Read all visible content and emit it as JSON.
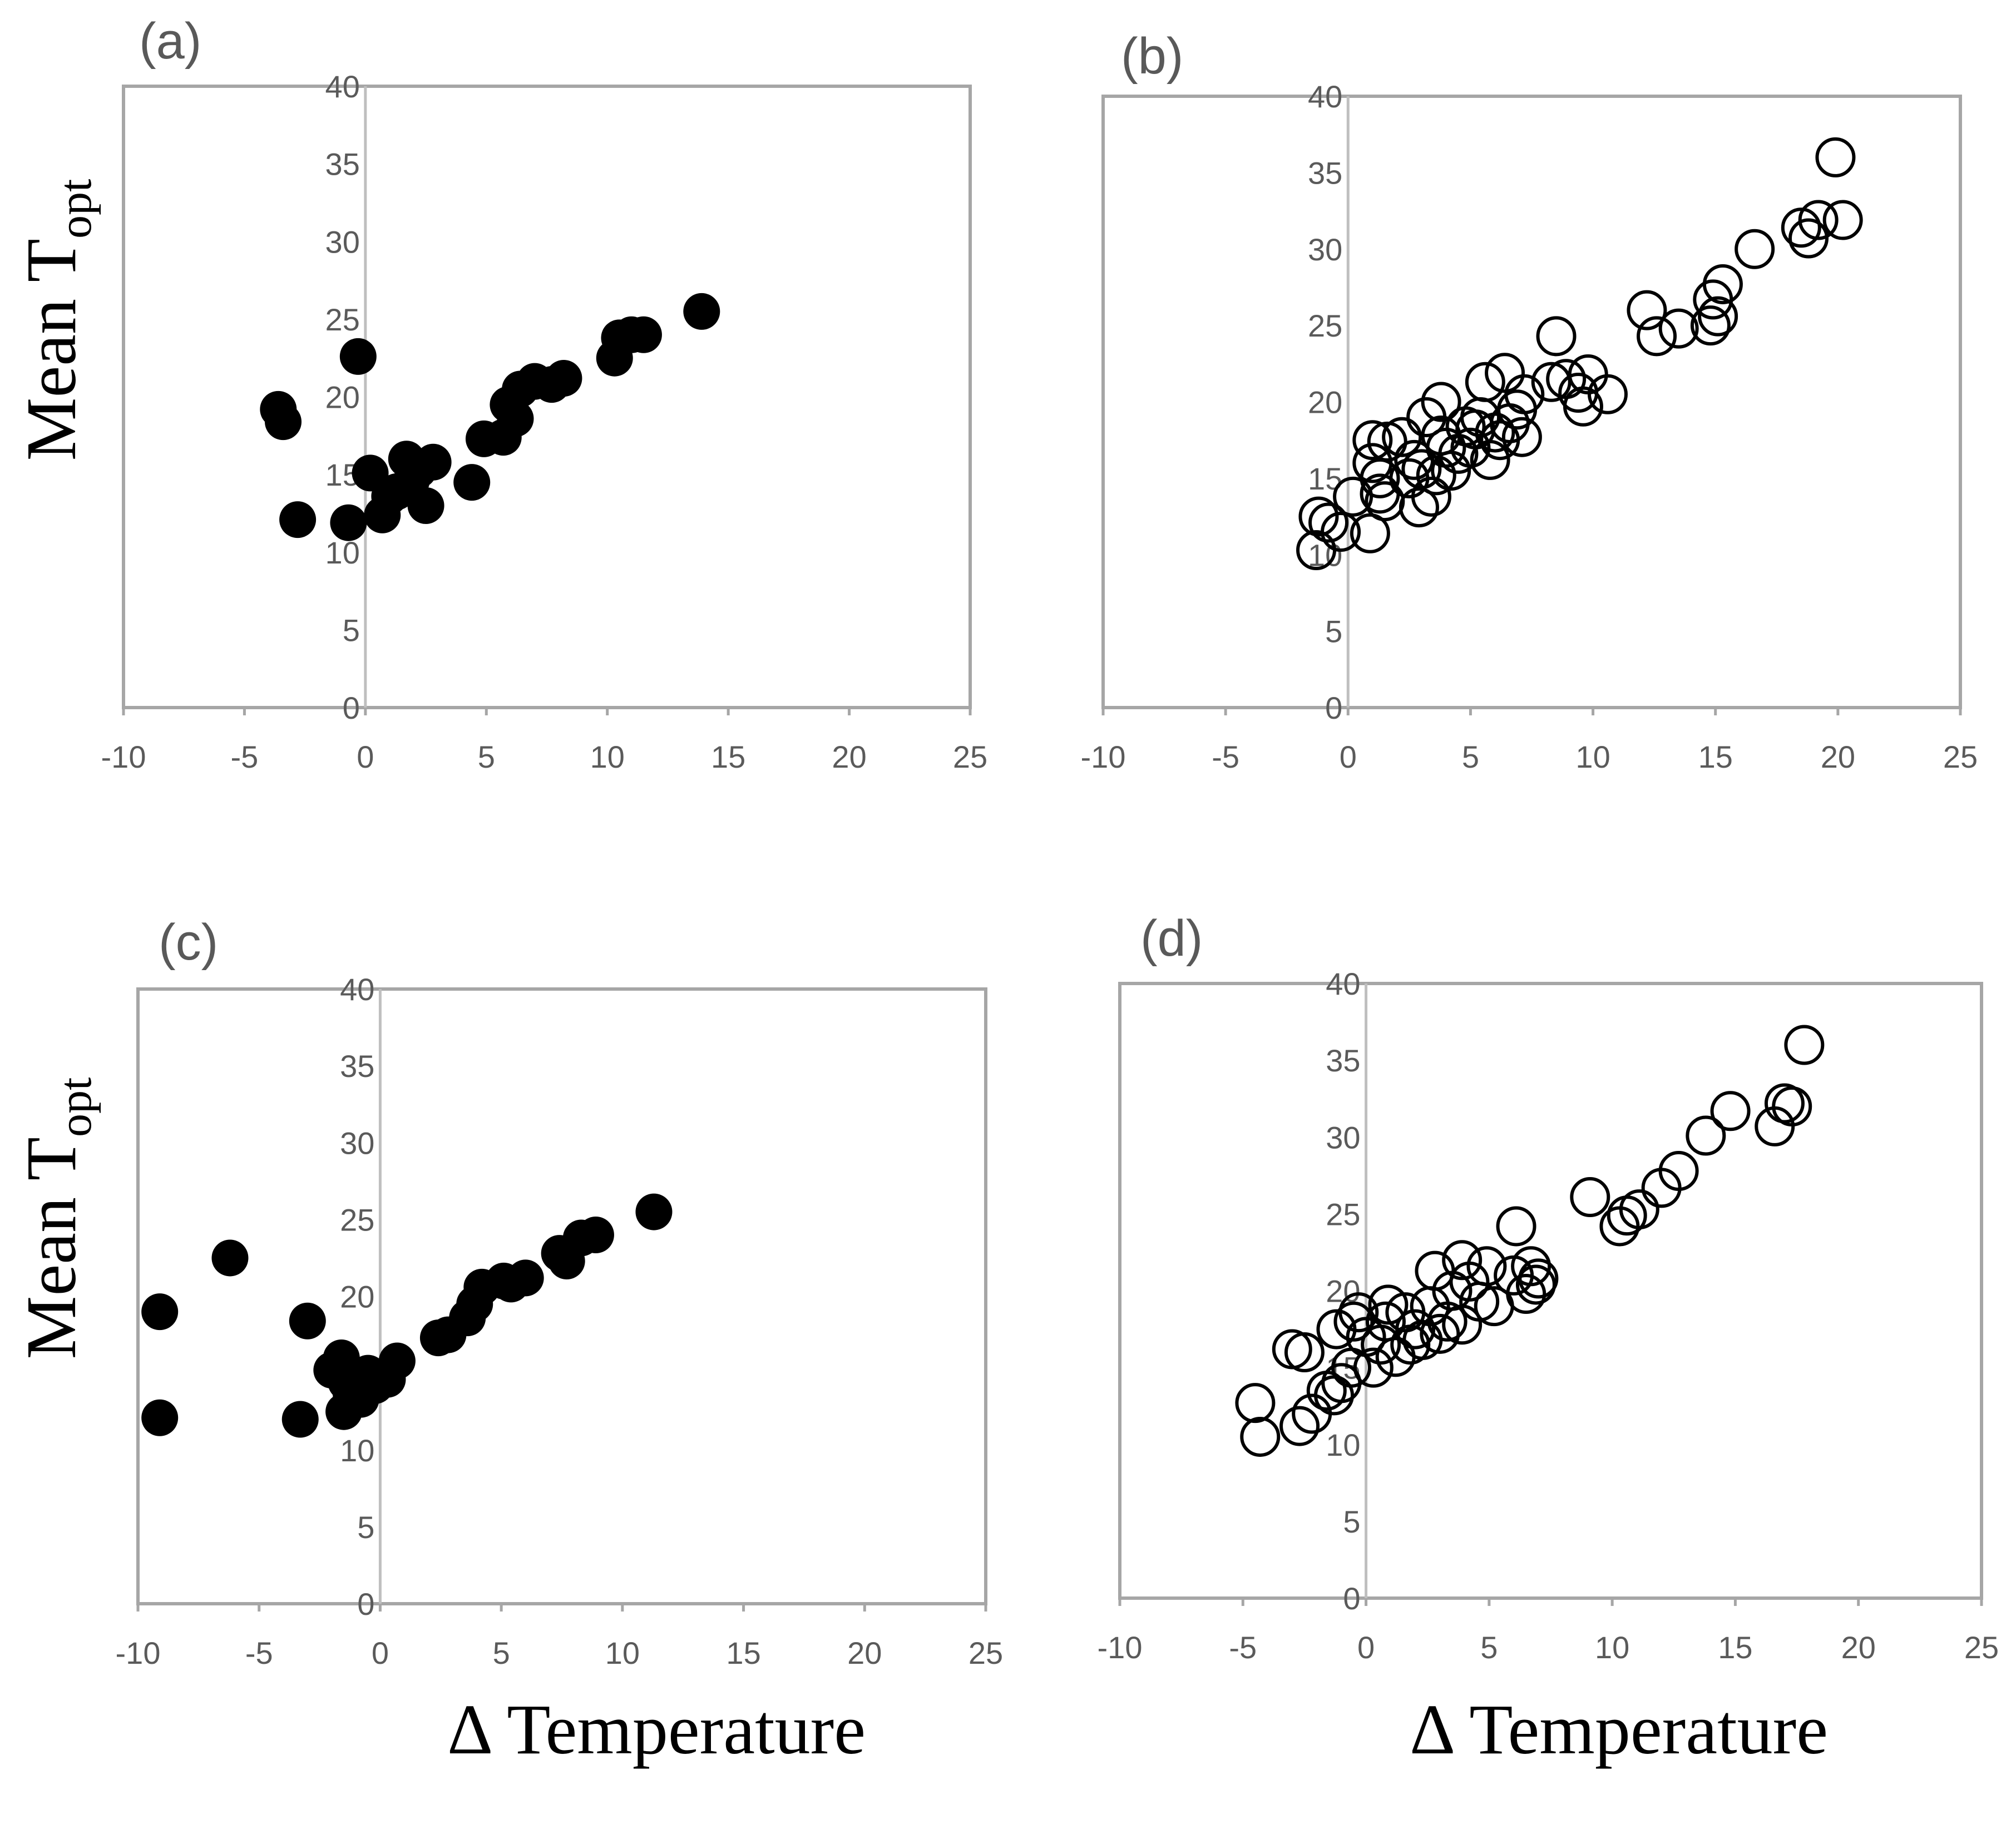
{
  "figure": {
    "y_axis_title": "Mean T",
    "y_axis_subscript": "opt",
    "x_axis_title": "Δ Temperature"
  },
  "chart_data": [
    {
      "panel": "(a)",
      "type": "scatter",
      "marker": "filled",
      "color": "#000000",
      "xlim": [
        -10,
        25
      ],
      "ylim": [
        0,
        40
      ],
      "xticks": [
        -10,
        -5,
        0,
        5,
        10,
        15,
        20,
        25
      ],
      "yticks": [
        0,
        5,
        10,
        15,
        20,
        25,
        30,
        35,
        40
      ],
      "xlabel": "",
      "ylabel": "Mean T_opt",
      "points": [
        [
          -3.6,
          19.2
        ],
        [
          -3.4,
          18.4
        ],
        [
          -2.8,
          12.1
        ],
        [
          -0.7,
          11.9
        ],
        [
          -0.3,
          22.6
        ],
        [
          0.2,
          15.1
        ],
        [
          0.7,
          12.4
        ],
        [
          1.0,
          13.6
        ],
        [
          1.3,
          13.9
        ],
        [
          1.7,
          16.0
        ],
        [
          1.9,
          14.6
        ],
        [
          2.2,
          15.3
        ],
        [
          2.5,
          13.0
        ],
        [
          2.8,
          15.8
        ],
        [
          4.4,
          14.5
        ],
        [
          4.9,
          17.3
        ],
        [
          5.7,
          17.4
        ],
        [
          5.9,
          19.5
        ],
        [
          6.2,
          18.6
        ],
        [
          6.4,
          20.5
        ],
        [
          7.0,
          21.0
        ],
        [
          7.7,
          20.8
        ],
        [
          8.2,
          21.2
        ],
        [
          10.3,
          22.5
        ],
        [
          10.5,
          23.8
        ],
        [
          11.0,
          24.0
        ],
        [
          11.5,
          24.0
        ],
        [
          13.9,
          25.5
        ]
      ]
    },
    {
      "panel": "(b)",
      "type": "scatter",
      "marker": "hollow",
      "color": "#000000",
      "xlim": [
        -10,
        25
      ],
      "ylim": [
        0,
        40
      ],
      "xticks": [
        -10,
        -5,
        0,
        5,
        10,
        15,
        20,
        25
      ],
      "yticks": [
        0,
        5,
        10,
        15,
        20,
        25,
        30,
        35,
        40
      ],
      "xlabel": "",
      "ylabel": "",
      "points": [
        [
          -1.3,
          10.3
        ],
        [
          -1.2,
          12.5
        ],
        [
          -0.8,
          12.1
        ],
        [
          -0.3,
          11.5
        ],
        [
          0.2,
          13.8
        ],
        [
          0.9,
          11.4
        ],
        [
          1.0,
          16.0
        ],
        [
          1.0,
          17.5
        ],
        [
          1.3,
          14.0
        ],
        [
          1.3,
          15.0
        ],
        [
          1.5,
          13.5
        ],
        [
          1.6,
          17.4
        ],
        [
          2.2,
          17.7
        ],
        [
          2.5,
          15.0
        ],
        [
          2.7,
          16.2
        ],
        [
          2.9,
          13.1
        ],
        [
          3.0,
          15.6
        ],
        [
          3.2,
          19.0
        ],
        [
          3.4,
          13.8
        ],
        [
          3.6,
          15.2
        ],
        [
          3.8,
          17.8
        ],
        [
          3.8,
          20.0
        ],
        [
          4.0,
          17.0
        ],
        [
          4.2,
          15.5
        ],
        [
          4.5,
          16.6
        ],
        [
          4.8,
          18.4
        ],
        [
          5.0,
          17.0
        ],
        [
          5.2,
          18.2
        ],
        [
          5.4,
          19.0
        ],
        [
          5.6,
          21.3
        ],
        [
          5.8,
          16.2
        ],
        [
          6.0,
          18.0
        ],
        [
          6.2,
          17.5
        ],
        [
          6.4,
          21.9
        ],
        [
          6.6,
          18.6
        ],
        [
          6.9,
          19.5
        ],
        [
          7.1,
          17.7
        ],
        [
          7.2,
          20.5
        ],
        [
          8.3,
          21.3
        ],
        [
          8.5,
          24.3
        ],
        [
          8.9,
          21.5
        ],
        [
          9.4,
          20.6
        ],
        [
          9.6,
          19.7
        ],
        [
          9.8,
          21.8
        ],
        [
          10.6,
          20.5
        ],
        [
          12.2,
          26.0
        ],
        [
          12.6,
          24.3
        ],
        [
          13.5,
          24.8
        ],
        [
          14.8,
          25.0
        ],
        [
          14.9,
          26.7
        ],
        [
          15.1,
          25.6
        ],
        [
          15.3,
          27.7
        ],
        [
          16.6,
          30.0
        ],
        [
          18.5,
          31.4
        ],
        [
          18.8,
          30.7
        ],
        [
          19.2,
          31.9
        ],
        [
          19.9,
          36.0
        ],
        [
          20.2,
          31.9
        ]
      ]
    },
    {
      "panel": "(c)",
      "type": "scatter",
      "marker": "filled",
      "color": "#000000",
      "xlim": [
        -10,
        25
      ],
      "ylim": [
        0,
        40
      ],
      "xticks": [
        -10,
        -5,
        0,
        5,
        10,
        15,
        20,
        25
      ],
      "yticks": [
        0,
        5,
        10,
        15,
        20,
        25,
        30,
        35,
        40
      ],
      "xlabel": "Δ Temperature",
      "ylabel": "Mean T_opt",
      "points": [
        [
          -9.1,
          19.0
        ],
        [
          -9.1,
          12.1
        ],
        [
          -6.2,
          22.5
        ],
        [
          -3.3,
          12.0
        ],
        [
          -3.0,
          18.4
        ],
        [
          -2.0,
          15.2
        ],
        [
          -1.6,
          16.0
        ],
        [
          -1.5,
          12.5
        ],
        [
          -1.4,
          14.4
        ],
        [
          -1.2,
          13.6
        ],
        [
          -0.8,
          13.3
        ],
        [
          -0.5,
          15.0
        ],
        [
          -0.2,
          14.2
        ],
        [
          0.3,
          14.6
        ],
        [
          0.7,
          15.8
        ],
        [
          2.4,
          17.3
        ],
        [
          2.8,
          17.5
        ],
        [
          3.6,
          18.6
        ],
        [
          3.9,
          19.5
        ],
        [
          4.2,
          20.6
        ],
        [
          5.1,
          21.0
        ],
        [
          5.4,
          20.8
        ],
        [
          6.0,
          21.2
        ],
        [
          7.4,
          22.8
        ],
        [
          7.7,
          22.3
        ],
        [
          8.3,
          23.8
        ],
        [
          8.9,
          24.0
        ],
        [
          11.3,
          25.5
        ]
      ]
    },
    {
      "panel": "(d)",
      "type": "scatter",
      "marker": "hollow",
      "color": "#000000",
      "xlim": [
        -10,
        25
      ],
      "ylim": [
        0,
        40
      ],
      "xticks": [
        -10,
        -5,
        0,
        5,
        10,
        15,
        20,
        25
      ],
      "yticks": [
        0,
        5,
        10,
        15,
        20,
        25,
        30,
        35,
        40
      ],
      "xlabel": "Δ Temperature",
      "ylabel": "",
      "points": [
        [
          -4.5,
          12.7
        ],
        [
          -4.3,
          10.5
        ],
        [
          -3.0,
          16.2
        ],
        [
          -2.7,
          11.2
        ],
        [
          -2.5,
          16.0
        ],
        [
          -2.2,
          12.0
        ],
        [
          -1.6,
          13.5
        ],
        [
          -1.3,
          13.2
        ],
        [
          -1.2,
          17.5
        ],
        [
          -1.0,
          14.0
        ],
        [
          -0.6,
          15.0
        ],
        [
          -0.5,
          18.0
        ],
        [
          -0.3,
          18.6
        ],
        [
          0.0,
          17.0
        ],
        [
          0.3,
          15.0
        ],
        [
          0.6,
          16.5
        ],
        [
          0.8,
          18.0
        ],
        [
          0.9,
          19.1
        ],
        [
          1.2,
          15.7
        ],
        [
          1.6,
          18.6
        ],
        [
          1.8,
          16.5
        ],
        [
          2.0,
          17.5
        ],
        [
          2.3,
          16.8
        ],
        [
          2.6,
          19.0
        ],
        [
          2.8,
          21.3
        ],
        [
          3.0,
          17.2
        ],
        [
          3.3,
          18.0
        ],
        [
          3.5,
          20.0
        ],
        [
          3.9,
          17.8
        ],
        [
          3.9,
          22.0
        ],
        [
          4.2,
          20.6
        ],
        [
          4.6,
          19.3
        ],
        [
          4.9,
          21.6
        ],
        [
          5.2,
          19.0
        ],
        [
          6.0,
          21.0
        ],
        [
          6.1,
          24.2
        ],
        [
          6.5,
          19.8
        ],
        [
          6.7,
          21.6
        ],
        [
          6.9,
          20.4
        ],
        [
          7.0,
          20.8
        ],
        [
          9.1,
          26.1
        ],
        [
          10.3,
          24.2
        ],
        [
          10.6,
          24.9
        ],
        [
          11.1,
          25.3
        ],
        [
          12.0,
          26.7
        ],
        [
          12.7,
          27.8
        ],
        [
          13.8,
          30.1
        ],
        [
          14.8,
          31.7
        ],
        [
          16.6,
          30.7
        ],
        [
          17.0,
          32.2
        ],
        [
          17.3,
          32.0
        ],
        [
          17.8,
          36.0
        ]
      ]
    }
  ]
}
